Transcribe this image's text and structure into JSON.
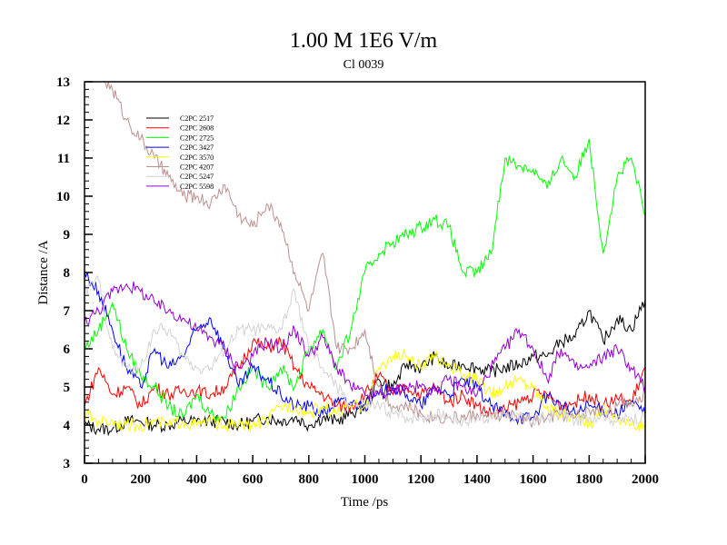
{
  "chart_data": {
    "type": "line",
    "title": "1.00 M 1E6 V/m",
    "subtitle": "Cl 0039",
    "xlabel": "Time /ps",
    "ylabel": "Distance /A",
    "xlim": [
      0,
      2000
    ],
    "ylim": [
      3,
      13
    ],
    "xticks": [
      0,
      200,
      400,
      600,
      800,
      1000,
      1200,
      1400,
      1600,
      1800,
      2000
    ],
    "yticks": [
      3,
      4,
      5,
      6,
      7,
      8,
      9,
      10,
      11,
      12,
      13
    ],
    "grid": false,
    "legend_position": "top-left",
    "x": [
      0,
      50,
      100,
      150,
      200,
      250,
      300,
      350,
      400,
      450,
      500,
      550,
      600,
      650,
      700,
      750,
      800,
      850,
      900,
      950,
      1000,
      1050,
      1100,
      1150,
      1200,
      1250,
      1300,
      1350,
      1400,
      1450,
      1500,
      1550,
      1600,
      1650,
      1700,
      1750,
      1800,
      1850,
      1900,
      1950,
      2000
    ],
    "series": [
      {
        "name": "C2PC 2517",
        "color": "#000000",
        "values": [
          4.0,
          3.9,
          3.9,
          4.1,
          4.1,
          4.0,
          4.0,
          4.1,
          4.1,
          4.1,
          4.1,
          4.0,
          4.1,
          4.2,
          4.1,
          4.2,
          4.0,
          4.2,
          4.1,
          4.3,
          4.5,
          5.2,
          5.0,
          5.6,
          5.5,
          5.8,
          5.5,
          5.6,
          5.5,
          5.4,
          5.5,
          5.6,
          5.8,
          5.8,
          6.2,
          6.3,
          7.0,
          6.2,
          6.8,
          6.5,
          7.3
        ]
      },
      {
        "name": "C2PC 2608",
        "color": "#ff0000",
        "values": [
          4.5,
          5.5,
          4.8,
          5.0,
          4.5,
          5.0,
          4.8,
          4.9,
          4.9,
          4.8,
          5.0,
          5.5,
          6.2,
          6.0,
          6.2,
          5.5,
          5.0,
          4.8,
          4.5,
          4.5,
          4.8,
          5.3,
          4.8,
          5.0,
          4.8,
          5.0,
          4.6,
          4.8,
          4.5,
          4.3,
          4.4,
          4.6,
          4.8,
          4.8,
          4.5,
          4.6,
          4.8,
          4.5,
          4.7,
          4.6,
          5.5
        ]
      },
      {
        "name": "C2PC 2725",
        "color": "#00ff00",
        "values": [
          6.0,
          6.5,
          7.2,
          6.0,
          5.3,
          5.0,
          4.5,
          4.2,
          4.8,
          4.3,
          4.2,
          5.0,
          5.5,
          5.0,
          5.5,
          5.0,
          6.0,
          6.5,
          5.5,
          6.5,
          8.0,
          8.5,
          8.8,
          9.0,
          9.2,
          9.4,
          9.2,
          8.0,
          8.0,
          8.5,
          11.0,
          10.8,
          10.7,
          10.2,
          11.0,
          10.5,
          11.5,
          8.5,
          10.5,
          11.0,
          9.5
        ]
      },
      {
        "name": "C2PC 3427",
        "color": "#0000ff",
        "values": [
          8.0,
          7.5,
          6.5,
          5.5,
          5.0,
          6.0,
          5.5,
          5.8,
          6.5,
          6.8,
          6.0,
          5.0,
          5.5,
          5.2,
          4.8,
          4.5,
          4.5,
          4.3,
          4.6,
          4.6,
          4.5,
          4.8,
          5.0,
          4.8,
          4.5,
          5.0,
          4.8,
          5.2,
          5.0,
          4.5,
          4.3,
          4.2,
          4.2,
          4.8,
          4.5,
          4.3,
          4.5,
          4.4,
          4.3,
          4.6,
          4.3
        ]
      },
      {
        "name": "C2PC 3570",
        "color": "#ffff00",
        "values": [
          4.3,
          4.1,
          4.1,
          4.0,
          4.0,
          4.1,
          4.0,
          4.1,
          4.0,
          4.1,
          4.0,
          4.0,
          4.0,
          4.1,
          4.5,
          4.5,
          4.3,
          4.5,
          4.3,
          4.5,
          4.5,
          5.5,
          5.8,
          5.8,
          5.5,
          5.8,
          5.6,
          5.3,
          5.2,
          4.8,
          5.0,
          5.2,
          5.0,
          4.5,
          4.3,
          4.2,
          4.0,
          4.5,
          4.2,
          4.0,
          4.0
        ]
      },
      {
        "name": "C2PC 4207",
        "color": "#bc8f8f",
        "values": [
          13.5,
          13.2,
          12.8,
          12.0,
          11.5,
          11.0,
          10.5,
          10.0,
          10.0,
          9.8,
          10.3,
          9.5,
          9.2,
          9.8,
          9.3,
          8.0,
          7.0,
          8.5,
          6.0,
          6.0,
          6.5,
          5.0,
          4.5,
          4.5,
          4.3,
          4.2,
          4.2,
          4.2,
          4.3,
          4.2,
          4.3,
          4.2,
          4.1,
          4.2,
          4.3,
          4.2,
          4.4,
          4.3,
          4.5,
          4.6,
          4.8
        ]
      },
      {
        "name": "C2PC 5247",
        "color": "#d3d3d3",
        "values": [
          7.5,
          7.8,
          6.0,
          5.5,
          5.5,
          6.5,
          6.5,
          5.8,
          5.5,
          5.5,
          6.0,
          6.5,
          6.5,
          6.5,
          6.5,
          7.5,
          6.0,
          5.5,
          5.0,
          4.5,
          4.5,
          4.5,
          4.3,
          4.2,
          4.2,
          4.3,
          4.2,
          4.1,
          4.2,
          4.2,
          4.3,
          4.2,
          4.1,
          4.2,
          4.3,
          4.1,
          4.2,
          4.3,
          4.1,
          4.2,
          4.2
        ]
      },
      {
        "name": "C2PC 5598",
        "color": "#9400d3",
        "values": [
          6.7,
          7.0,
          7.5,
          7.7,
          7.5,
          7.2,
          7.0,
          6.8,
          6.5,
          6.3,
          6.0,
          5.5,
          5.8,
          6.2,
          6.0,
          6.5,
          5.8,
          6.3,
          5.5,
          5.0,
          4.8,
          4.8,
          4.9,
          5.0,
          5.0,
          4.9,
          5.2,
          5.0,
          4.8,
          5.5,
          6.0,
          6.5,
          6.0,
          5.2,
          6.0,
          5.5,
          5.5,
          5.8,
          6.0,
          5.5,
          5.0
        ]
      }
    ]
  }
}
